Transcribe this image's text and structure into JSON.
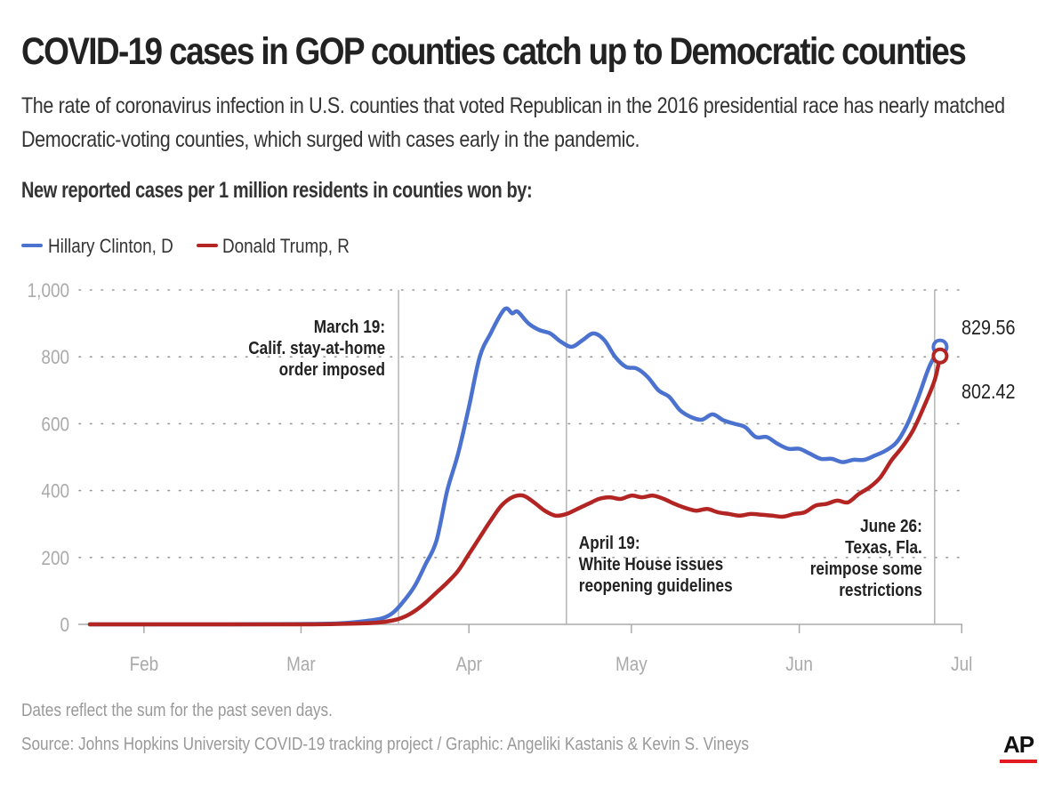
{
  "title": "COVID-19 cases in GOP counties catch up to Democratic counties",
  "subtitle": "The rate of coronavirus infection in U.S. counties that voted Republican in the 2016 presidential race has nearly matched Democratic-voting counties, which surged with cases early in the pandemic.",
  "note": "Dates reflect the sum for the past seven days.",
  "source": "Source: Johns Hopkins University COVID-19 tracking project / Graphic: Angeliki Kastanis & Kevin S. Vineys",
  "logo_text": "AP",
  "colors": {
    "clinton": "#4b72cf",
    "trump": "#b22523",
    "grid": "#9a9a9a",
    "axis": "#aaaaaa",
    "logo_bar": "#e31b23"
  },
  "chart_data": {
    "type": "line",
    "title": "New reported cases per 1 million residents in counties won by:",
    "x_start": "2020-01-22",
    "x_end": "2020-06-28",
    "xticks": [
      {
        "date": "2020-02-01",
        "label": "Feb"
      },
      {
        "date": "2020-03-01",
        "label": "Mar"
      },
      {
        "date": "2020-04-01",
        "label": "Apr"
      },
      {
        "date": "2020-05-01",
        "label": "May"
      },
      {
        "date": "2020-06-01",
        "label": "Jun"
      },
      {
        "date": "2020-07-01",
        "label": "Jul"
      }
    ],
    "ylim": [
      0,
      1000
    ],
    "yticks": [
      {
        "value": 0,
        "label": "0"
      },
      {
        "value": 200,
        "label": "200"
      },
      {
        "value": 400,
        "label": "400"
      },
      {
        "value": 600,
        "label": "600"
      },
      {
        "value": 800,
        "label": "800"
      },
      {
        "value": 1000,
        "label": "1,000"
      }
    ],
    "grid": true,
    "legend_position": "top-left",
    "series": [
      {
        "name": "Hillary Clinton, D",
        "color": "#4b72cf",
        "end_label": "829.56",
        "points": [
          [
            "2020-01-22",
            0
          ],
          [
            "2020-02-15",
            0
          ],
          [
            "2020-03-01",
            1
          ],
          [
            "2020-03-08",
            3
          ],
          [
            "2020-03-13",
            10
          ],
          [
            "2020-03-16",
            18
          ],
          [
            "2020-03-18",
            35
          ],
          [
            "2020-03-20",
            70
          ],
          [
            "2020-03-22",
            115
          ],
          [
            "2020-03-24",
            180
          ],
          [
            "2020-03-26",
            250
          ],
          [
            "2020-03-28",
            400
          ],
          [
            "2020-03-30",
            510
          ],
          [
            "2020-04-01",
            650
          ],
          [
            "2020-04-03",
            800
          ],
          [
            "2020-04-05",
            870
          ],
          [
            "2020-04-07",
            930
          ],
          [
            "2020-04-08",
            945
          ],
          [
            "2020-04-09",
            930
          ],
          [
            "2020-04-10",
            935
          ],
          [
            "2020-04-12",
            900
          ],
          [
            "2020-04-14",
            880
          ],
          [
            "2020-04-16",
            870
          ],
          [
            "2020-04-18",
            845
          ],
          [
            "2020-04-20",
            830
          ],
          [
            "2020-04-22",
            850
          ],
          [
            "2020-04-24",
            870
          ],
          [
            "2020-04-26",
            850
          ],
          [
            "2020-04-28",
            800
          ],
          [
            "2020-04-30",
            770
          ],
          [
            "2020-05-02",
            765
          ],
          [
            "2020-05-04",
            740
          ],
          [
            "2020-05-06",
            700
          ],
          [
            "2020-05-08",
            680
          ],
          [
            "2020-05-10",
            640
          ],
          [
            "2020-05-12",
            620
          ],
          [
            "2020-05-14",
            612
          ],
          [
            "2020-05-16",
            628
          ],
          [
            "2020-05-18",
            610
          ],
          [
            "2020-05-20",
            600
          ],
          [
            "2020-05-22",
            590
          ],
          [
            "2020-05-24",
            560
          ],
          [
            "2020-05-26",
            560
          ],
          [
            "2020-05-28",
            540
          ],
          [
            "2020-05-30",
            525
          ],
          [
            "2020-06-01",
            525
          ],
          [
            "2020-06-03",
            510
          ],
          [
            "2020-06-05",
            495
          ],
          [
            "2020-06-07",
            495
          ],
          [
            "2020-06-09",
            485
          ],
          [
            "2020-06-11",
            492
          ],
          [
            "2020-06-13",
            492
          ],
          [
            "2020-06-15",
            505
          ],
          [
            "2020-06-17",
            520
          ],
          [
            "2020-06-19",
            545
          ],
          [
            "2020-06-21",
            600
          ],
          [
            "2020-06-23",
            680
          ],
          [
            "2020-06-25",
            770
          ],
          [
            "2020-06-27",
            829.56
          ]
        ]
      },
      {
        "name": "Donald Trump, R",
        "color": "#b22523",
        "end_label": "802.42",
        "points": [
          [
            "2020-01-22",
            0
          ],
          [
            "2020-02-15",
            0
          ],
          [
            "2020-03-01",
            0
          ],
          [
            "2020-03-10",
            2
          ],
          [
            "2020-03-15",
            5
          ],
          [
            "2020-03-18",
            12
          ],
          [
            "2020-03-20",
            22
          ],
          [
            "2020-03-22",
            40
          ],
          [
            "2020-03-24",
            65
          ],
          [
            "2020-03-26",
            95
          ],
          [
            "2020-03-28",
            125
          ],
          [
            "2020-03-30",
            160
          ],
          [
            "2020-04-01",
            210
          ],
          [
            "2020-04-03",
            260
          ],
          [
            "2020-04-05",
            310
          ],
          [
            "2020-04-07",
            355
          ],
          [
            "2020-04-09",
            380
          ],
          [
            "2020-04-11",
            385
          ],
          [
            "2020-04-13",
            365
          ],
          [
            "2020-04-15",
            340
          ],
          [
            "2020-04-17",
            325
          ],
          [
            "2020-04-19",
            330
          ],
          [
            "2020-04-21",
            345
          ],
          [
            "2020-04-23",
            360
          ],
          [
            "2020-04-25",
            375
          ],
          [
            "2020-04-27",
            380
          ],
          [
            "2020-04-29",
            375
          ],
          [
            "2020-05-01",
            385
          ],
          [
            "2020-05-03",
            380
          ],
          [
            "2020-05-05",
            385
          ],
          [
            "2020-05-07",
            375
          ],
          [
            "2020-05-09",
            360
          ],
          [
            "2020-05-11",
            348
          ],
          [
            "2020-05-13",
            340
          ],
          [
            "2020-05-15",
            345
          ],
          [
            "2020-05-17",
            335
          ],
          [
            "2020-05-19",
            330
          ],
          [
            "2020-05-21",
            325
          ],
          [
            "2020-05-23",
            330
          ],
          [
            "2020-05-25",
            328
          ],
          [
            "2020-05-27",
            325
          ],
          [
            "2020-05-29",
            322
          ],
          [
            "2020-05-31",
            330
          ],
          [
            "2020-06-02",
            335
          ],
          [
            "2020-06-04",
            355
          ],
          [
            "2020-06-06",
            360
          ],
          [
            "2020-06-08",
            370
          ],
          [
            "2020-06-10",
            365
          ],
          [
            "2020-06-12",
            390
          ],
          [
            "2020-06-14",
            410
          ],
          [
            "2020-06-16",
            440
          ],
          [
            "2020-06-18",
            490
          ],
          [
            "2020-06-20",
            530
          ],
          [
            "2020-06-22",
            580
          ],
          [
            "2020-06-24",
            650
          ],
          [
            "2020-06-26",
            730
          ],
          [
            "2020-06-27",
            802.42
          ]
        ]
      }
    ],
    "annotations": [
      {
        "date": "2020-03-19",
        "lines": [
          "March 19:",
          "Calif. stay-at-home",
          "order imposed"
        ],
        "placement": "left-top"
      },
      {
        "date": "2020-04-19",
        "lines": [
          "April 19:",
          "White House issues",
          "reopening guidelines"
        ],
        "placement": "right-bottom"
      },
      {
        "date": "2020-06-26",
        "lines": [
          "June 26:",
          "Texas, Fla.",
          "reimpose some",
          "restrictions"
        ],
        "placement": "left-bottom"
      }
    ]
  }
}
